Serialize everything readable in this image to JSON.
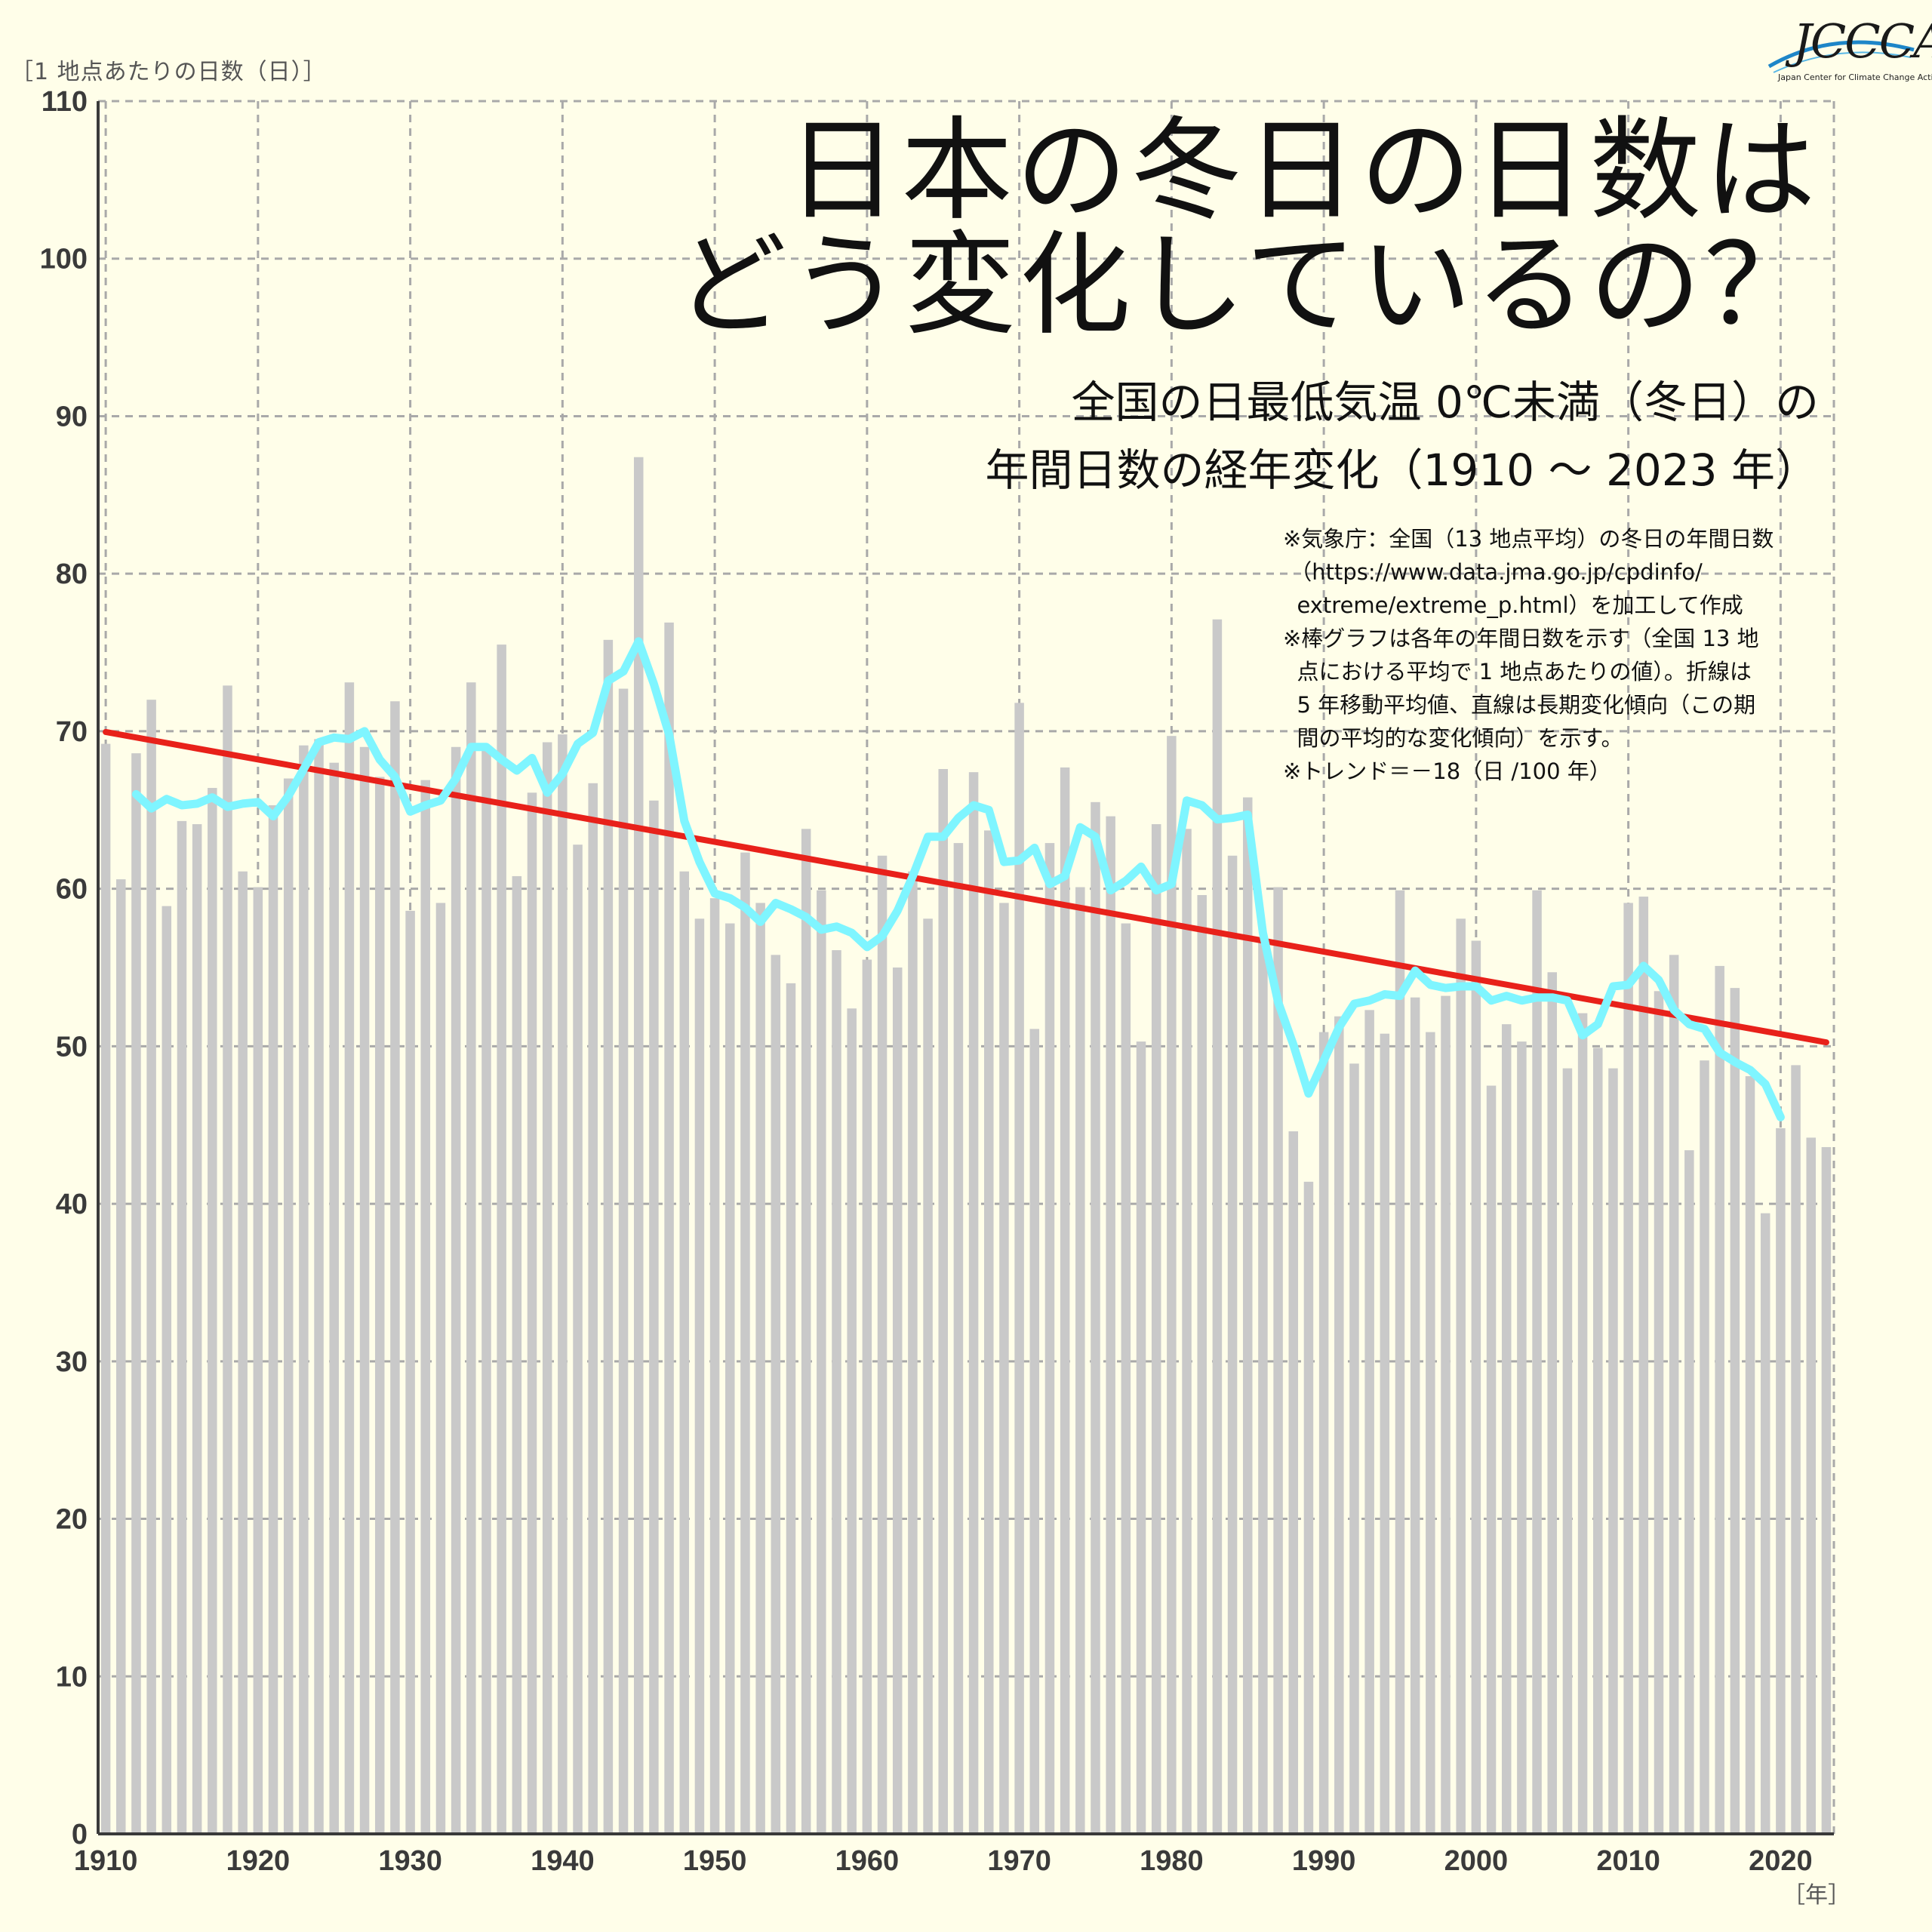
{
  "title_lines": [
    "日本の冬日の日数は",
    "どう変化しているの？"
  ],
  "subtitle_lines": [
    "全国の日最低気温 0℃未満（冬日）の",
    "年間日数の経年変化（1910 ～ 2023 年）"
  ],
  "notes": [
    "※気象庁：全国（13 地点平均）の冬日の年間日数\n （https://www.data.jma.go.jp/cpdinfo/\n  extreme/extreme_p.html）を加工して作成",
    "※棒グラフは各年の年間日数を示す（全国 13 地\n  点における平均で 1 地点あたりの値）。折線は\n  5 年移動平均値、直線は長期変化傾向（この期\n  間の平均的な変化傾向）を示す。",
    "※トレンド＝－18（日 /100 年）"
  ],
  "logo": {
    "text": "JCCCA",
    "subtitle": "Japan Center for Climate Change Actions"
  },
  "colors": {
    "background": "#fffee9",
    "bars": "#c9c9c9",
    "trend": "#e8211a",
    "moving_average": "#7ff5ff",
    "grid": "#a9a9a9"
  },
  "chart_data": {
    "type": "bar",
    "ylabel": "［1 地点あたりの日数（日）］",
    "xlabel": "［年］",
    "ylim": [
      0,
      110
    ],
    "xlim": [
      1910,
      2023
    ],
    "yticks": [
      0,
      10,
      20,
      30,
      40,
      50,
      60,
      70,
      80,
      90,
      100,
      110
    ],
    "xticks": [
      1910,
      1920,
      1930,
      1940,
      1950,
      1960,
      1970,
      1980,
      1990,
      2000,
      2010,
      2020
    ],
    "grid": true,
    "years": [
      1910,
      1911,
      1912,
      1913,
      1914,
      1915,
      1916,
      1917,
      1918,
      1919,
      1920,
      1921,
      1922,
      1923,
      1924,
      1925,
      1926,
      1927,
      1928,
      1929,
      1930,
      1931,
      1932,
      1933,
      1934,
      1935,
      1936,
      1937,
      1938,
      1939,
      1940,
      1941,
      1942,
      1943,
      1944,
      1945,
      1946,
      1947,
      1948,
      1949,
      1950,
      1951,
      1952,
      1953,
      1954,
      1955,
      1956,
      1957,
      1958,
      1959,
      1960,
      1961,
      1962,
      1963,
      1964,
      1965,
      1966,
      1967,
      1968,
      1969,
      1970,
      1971,
      1972,
      1973,
      1974,
      1975,
      1976,
      1977,
      1978,
      1979,
      1980,
      1981,
      1982,
      1983,
      1984,
      1985,
      1986,
      1987,
      1988,
      1989,
      1990,
      1991,
      1992,
      1993,
      1994,
      1995,
      1996,
      1997,
      1998,
      1999,
      2000,
      2001,
      2002,
      2003,
      2004,
      2005,
      2006,
      2007,
      2008,
      2009,
      2010,
      2011,
      2012,
      2013,
      2014,
      2015,
      2016,
      2017,
      2018,
      2019,
      2020,
      2021,
      2022,
      2023
    ],
    "series": [
      {
        "name": "年間日数",
        "type": "bar",
        "values": [
          69.2,
          60.6,
          68.6,
          72.0,
          58.9,
          64.3,
          64.1,
          66.4,
          72.9,
          61.1,
          60.1,
          65.3,
          67.0,
          69.1,
          69.5,
          68.0,
          73.1,
          69.0,
          67.1,
          71.9,
          58.6,
          66.9,
          59.1,
          69.0,
          73.1,
          68.9,
          75.5,
          60.8,
          66.1,
          69.3,
          69.8,
          62.8,
          66.7,
          75.8,
          72.7,
          87.4,
          65.6,
          76.9,
          61.1,
          58.1,
          59.4,
          57.8,
          62.3,
          59.1,
          55.8,
          54.0,
          63.8,
          59.9,
          56.1,
          52.4,
          55.5,
          62.1,
          55.0,
          61.1,
          58.1,
          67.6,
          62.9,
          67.4,
          63.7,
          59.1,
          71.8,
          51.1,
          62.9,
          67.7,
          60.1,
          65.5,
          64.6,
          57.8,
          50.3,
          64.1,
          69.7,
          63.8,
          59.6,
          77.1,
          62.1,
          65.8,
          56.7,
          60.1,
          44.6,
          41.4,
          50.9,
          51.9,
          48.9,
          52.3,
          50.8,
          59.9,
          53.1,
          50.9,
          53.2,
          58.1,
          56.7,
          47.5,
          51.4,
          50.3,
          59.9,
          54.7,
          48.6,
          52.1,
          49.9,
          48.6,
          59.1,
          59.5,
          53.5,
          55.8,
          43.4,
          49.1,
          55.1,
          53.7,
          48.1,
          39.4,
          44.8,
          48.8,
          44.2,
          43.6
        ]
      },
      {
        "name": "5年移動平均",
        "type": "line",
        "values": [
          null,
          null,
          66.0,
          65.1,
          65.7,
          65.3,
          65.4,
          65.8,
          65.2,
          65.4,
          65.5,
          64.6,
          65.9,
          67.6,
          69.3,
          69.6,
          69.5,
          70.0,
          68.2,
          67.1,
          64.9,
          65.3,
          65.6,
          67.0,
          69.0,
          69.0,
          68.2,
          67.5,
          68.3,
          66.1,
          67.3,
          69.2,
          69.9,
          73.2,
          73.8,
          75.7,
          73.0,
          69.8,
          64.3,
          61.7,
          59.7,
          59.4,
          58.8,
          57.9,
          59.1,
          58.7,
          58.2,
          57.4,
          57.6,
          57.2,
          56.3,
          57.0,
          58.6,
          60.8,
          63.3,
          63.3,
          64.5,
          65.3,
          65.0,
          61.7,
          61.8,
          62.6,
          60.3,
          60.8,
          63.9,
          63.3,
          59.9,
          60.5,
          61.4,
          59.9,
          60.3,
          65.6,
          65.3,
          64.4,
          64.5,
          64.7,
          57.2,
          52.8,
          50.1,
          47.0,
          49.1,
          51.2,
          52.7,
          52.9,
          53.3,
          53.2,
          54.8,
          53.9,
          53.7,
          53.8,
          53.8,
          52.9,
          53.2,
          52.9,
          53.1,
          53.1,
          52.9,
          50.7,
          51.4,
          53.8,
          53.9,
          55.1,
          54.2,
          52.3,
          51.4,
          51.1,
          49.6,
          49.0,
          48.5,
          47.6,
          45.5,
          null,
          null,
          null
        ]
      },
      {
        "name": "長期変化傾向",
        "type": "line",
        "from": [
          1910,
          69.95
        ],
        "to": [
          2023,
          50.25
        ]
      }
    ]
  }
}
